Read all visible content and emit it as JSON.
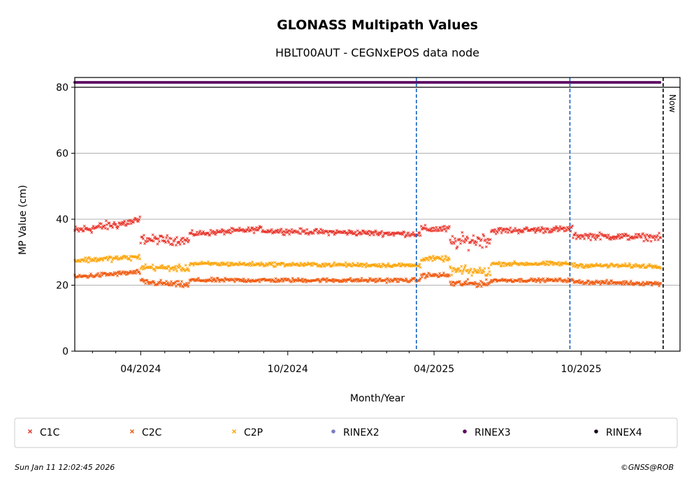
{
  "chart_data": {
    "type": "scatter",
    "title": "GLONASS Multipath Values",
    "subtitle": "HBLT00AUT - CEGNxEPOS data node",
    "xlabel": "Month/Year",
    "ylabel": "MP Value (cm)",
    "ylim": [
      0,
      80
    ],
    "yticks": [
      0,
      20,
      40,
      60,
      80
    ],
    "xlim": [
      "2024-01-10",
      "2026-02-01"
    ],
    "xticks": [
      {
        "date": "2024-04-01",
        "label": "04/2024"
      },
      {
        "date": "2024-10-01",
        "label": "10/2024"
      },
      {
        "date": "2025-04-01",
        "label": "04/2025"
      },
      {
        "date": "2025-10-01",
        "label": "10/2025"
      }
    ],
    "grid": "horizontal",
    "event_lines": [
      "2025-03-10",
      "2025-09-17"
    ],
    "now_line": {
      "date": "2026-01-11",
      "label": "Now"
    },
    "series": [
      {
        "name": "C1C",
        "color": "#e8352b",
        "marker": "x",
        "segments": [
          {
            "start": "2024-01-10",
            "end": "2024-03-31",
            "from": 36.5,
            "to": 39.5,
            "noise": 1.4
          },
          {
            "start": "2024-04-01",
            "end": "2024-05-31",
            "from": 34,
            "to": 33.5,
            "noise": 1.3
          },
          {
            "start": "2024-06-01",
            "end": "2024-08-31",
            "from": 35.5,
            "to": 37,
            "noise": 0.8
          },
          {
            "start": "2024-09-01",
            "end": "2025-03-15",
            "from": 36.5,
            "to": 35.5,
            "noise": 0.8
          },
          {
            "start": "2025-03-16",
            "end": "2025-04-20",
            "from": 37,
            "to": 37,
            "noise": 1
          },
          {
            "start": "2025-04-21",
            "end": "2025-06-10",
            "from": 33,
            "to": 34,
            "noise": 2.2
          },
          {
            "start": "2025-06-11",
            "end": "2025-09-20",
            "from": 36.5,
            "to": 37,
            "noise": 0.9
          },
          {
            "start": "2025-09-21",
            "end": "2026-01-08",
            "from": 35,
            "to": 34.5,
            "noise": 1
          }
        ]
      },
      {
        "name": "C2C",
        "color": "#f05a0f",
        "marker": "x",
        "segments": [
          {
            "start": "2024-01-10",
            "end": "2024-03-31",
            "from": 22.5,
            "to": 24,
            "noise": 0.7
          },
          {
            "start": "2024-04-01",
            "end": "2024-05-31",
            "from": 21,
            "to": 20,
            "noise": 0.9
          },
          {
            "start": "2024-06-01",
            "end": "2025-03-15",
            "from": 21.5,
            "to": 21.5,
            "noise": 0.6
          },
          {
            "start": "2025-03-16",
            "end": "2025-04-20",
            "from": 23,
            "to": 23,
            "noise": 0.7
          },
          {
            "start": "2025-04-21",
            "end": "2025-06-10",
            "from": 20.5,
            "to": 20.5,
            "noise": 1
          },
          {
            "start": "2025-06-11",
            "end": "2025-09-20",
            "from": 21.5,
            "to": 21.5,
            "noise": 0.5
          },
          {
            "start": "2025-09-21",
            "end": "2026-01-08",
            "from": 21,
            "to": 20.5,
            "noise": 0.6
          }
        ]
      },
      {
        "name": "C2P",
        "color": "#fca50a",
        "marker": "x",
        "segments": [
          {
            "start": "2024-01-10",
            "end": "2024-03-31",
            "from": 27.5,
            "to": 28.5,
            "noise": 0.8
          },
          {
            "start": "2024-04-01",
            "end": "2024-05-31",
            "from": 25.5,
            "to": 25,
            "noise": 0.9
          },
          {
            "start": "2024-06-01",
            "end": "2025-03-15",
            "from": 26.5,
            "to": 26,
            "noise": 0.6
          },
          {
            "start": "2025-03-16",
            "end": "2025-04-20",
            "from": 28,
            "to": 28,
            "noise": 0.7
          },
          {
            "start": "2025-04-21",
            "end": "2025-06-10",
            "from": 24.5,
            "to": 24,
            "noise": 1.4
          },
          {
            "start": "2025-06-11",
            "end": "2025-09-20",
            "from": 26.5,
            "to": 26.5,
            "noise": 0.6
          },
          {
            "start": "2025-09-21",
            "end": "2026-01-08",
            "from": 26,
            "to": 25.8,
            "noise": 0.6
          }
        ]
      }
    ],
    "rinex_band": {
      "series": "RINEX3",
      "start": "2024-01-10",
      "end": "2026-01-08",
      "color": "#5c0a63"
    },
    "legend": [
      {
        "label": "C1C",
        "color": "#e8352b",
        "marker": "x"
      },
      {
        "label": "C2C",
        "color": "#f05a0f",
        "marker": "x"
      },
      {
        "label": "C2P",
        "color": "#fca50a",
        "marker": "x"
      },
      {
        "label": "RINEX2",
        "color": "#7b7bc4",
        "marker": "dot"
      },
      {
        "label": "RINEX3",
        "color": "#5c0a63",
        "marker": "dot"
      },
      {
        "label": "RINEX4",
        "color": "#1a0a1e",
        "marker": "dot"
      }
    ],
    "legend_position": "bottom"
  },
  "footer": {
    "timestamp": "Sun Jan 11 12:02:45 2026",
    "credit": "©GNSS@ROB"
  }
}
